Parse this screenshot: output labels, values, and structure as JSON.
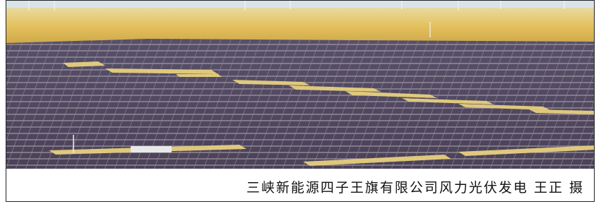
{
  "caption": {
    "text": "三峡新能源四子王旗有限公司风力光伏发电 王正 摄"
  }
}
